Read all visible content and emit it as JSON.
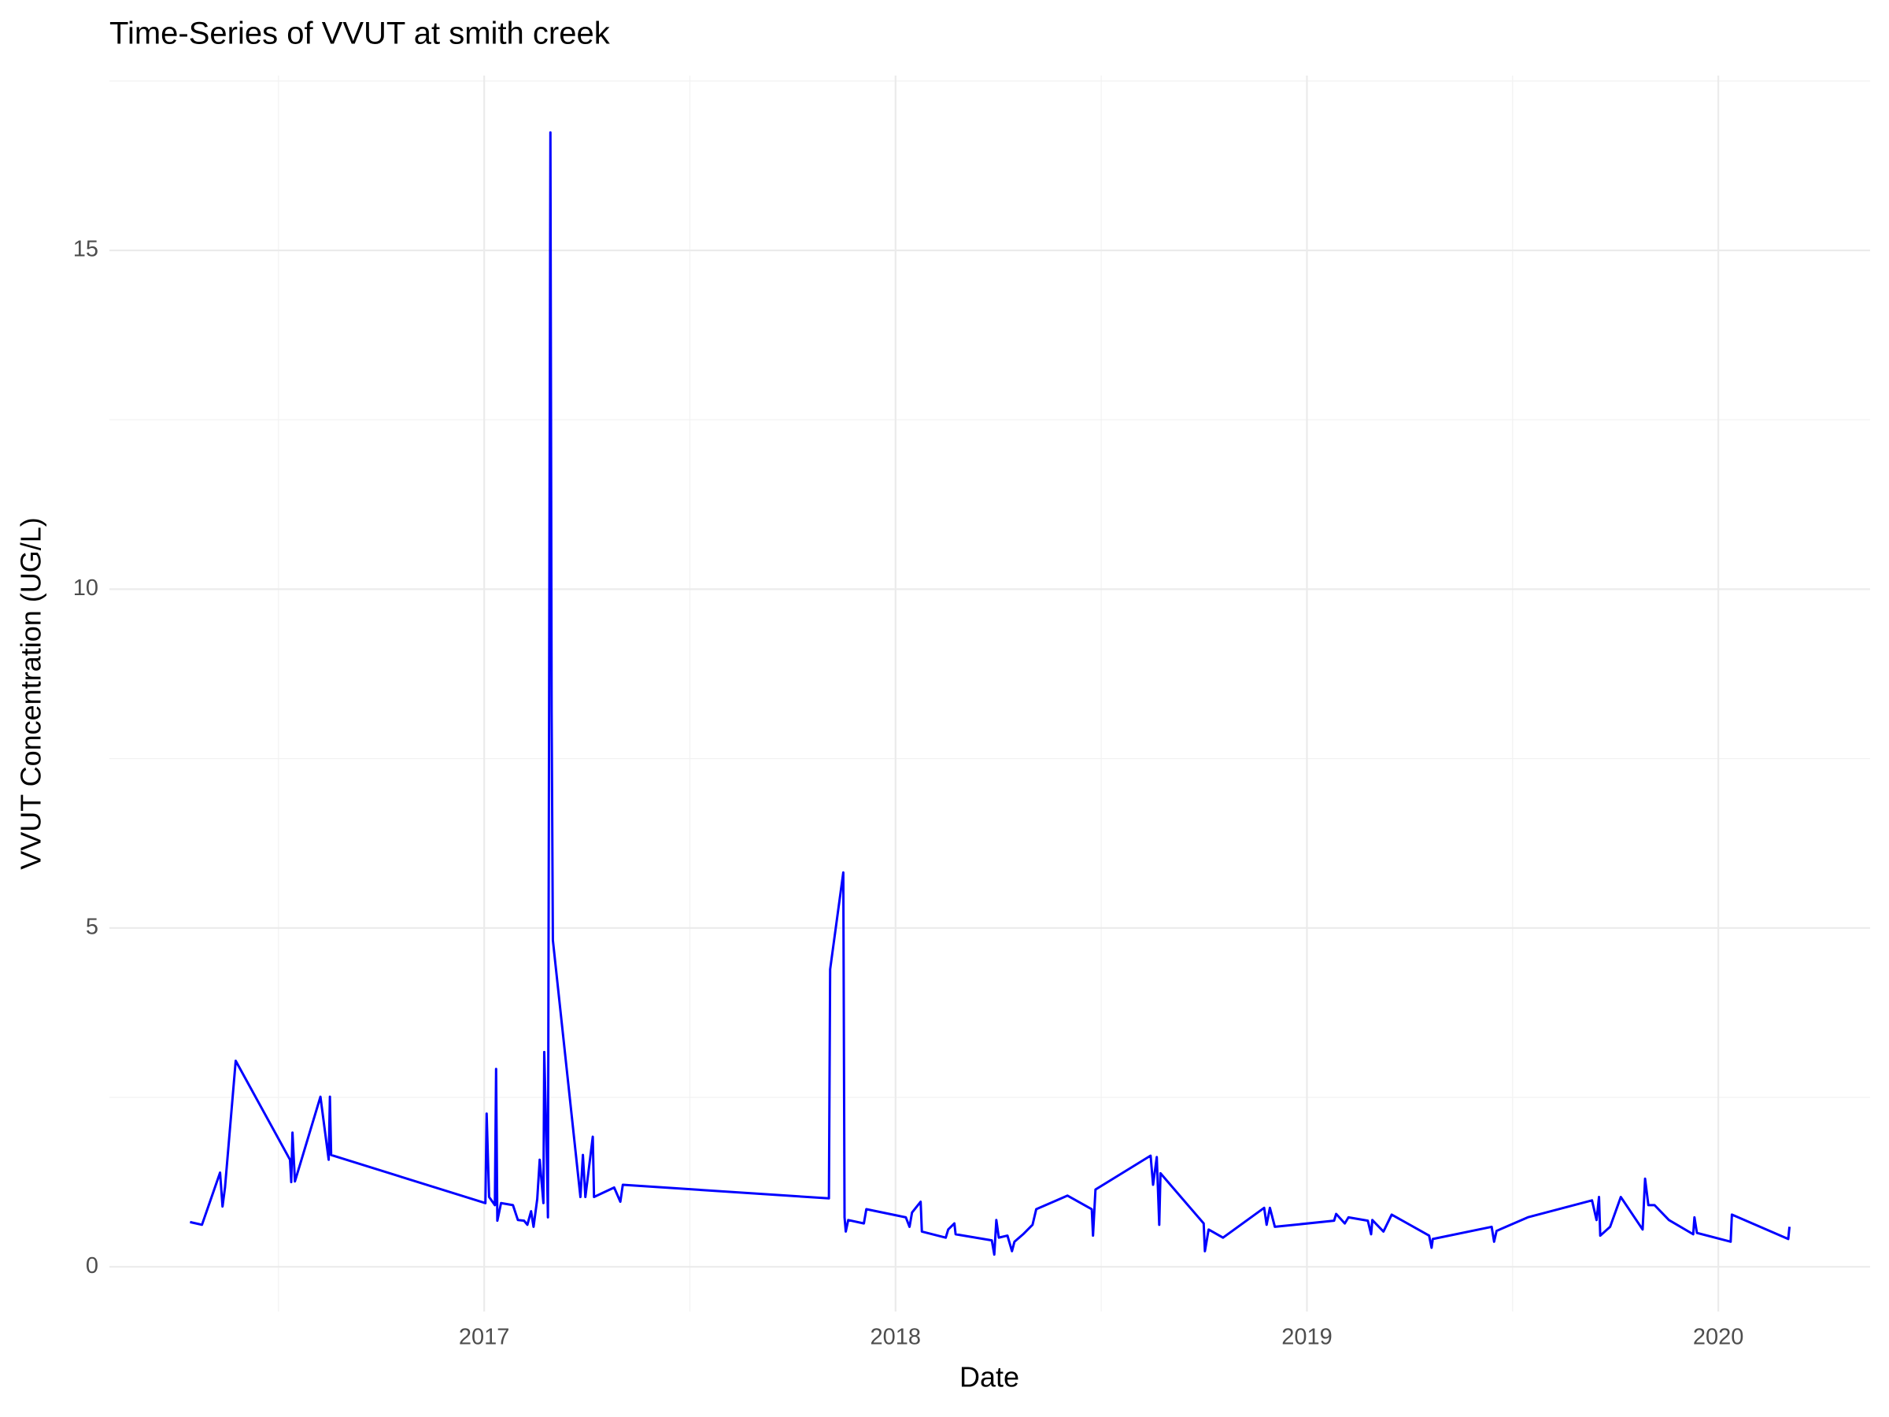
{
  "chart_data": {
    "type": "line",
    "title": "Time-Series of VVUT at smith creek",
    "xlabel": "Date",
    "ylabel": "VVUT Concentration (UG/L)",
    "color": "#0000ff",
    "grid": true,
    "xlim": [
      2016.089,
      2020.369
    ],
    "ylim": [
      -0.66,
      17.58
    ],
    "xticks": [
      2017,
      2018,
      2019,
      2020
    ],
    "yticks": [
      0,
      5,
      10,
      15
    ],
    "xminor": [
      2016.5,
      2017.5,
      2018.5,
      2019.5
    ],
    "yminor": [
      2.5,
      7.5,
      12.5,
      17.5
    ],
    "x": [
      2016.285,
      2016.314,
      2016.358,
      2016.364,
      2016.37,
      2016.396,
      2016.528,
      2016.531,
      2016.534,
      2016.54,
      2016.602,
      2016.622,
      2016.625,
      2016.628,
      2017.003,
      2017.006,
      2017.012,
      2017.026,
      2017.029,
      2017.032,
      2017.041,
      2017.07,
      2017.082,
      2017.097,
      2017.105,
      2017.114,
      2017.12,
      2017.129,
      2017.135,
      2017.144,
      2017.146,
      2017.152,
      2017.155,
      2017.161,
      2017.164,
      2017.167,
      2017.234,
      2017.24,
      2017.246,
      2017.264,
      2017.267,
      2017.316,
      2017.331,
      2017.337,
      2017.838,
      2017.841,
      2017.873,
      2017.876,
      2017.879,
      2017.885,
      2017.923,
      2017.929,
      2018.025,
      2018.034,
      2018.04,
      2018.061,
      2018.064,
      2018.122,
      2018.128,
      2018.143,
      2018.146,
      2018.234,
      2018.24,
      2018.245,
      2018.251,
      2018.272,
      2018.283,
      2018.289,
      2018.31,
      2018.333,
      2018.342,
      2018.418,
      2018.477,
      2018.48,
      2018.486,
      2018.62,
      2018.626,
      2018.635,
      2018.641,
      2018.644,
      2018.749,
      2018.752,
      2018.761,
      2018.796,
      2018.896,
      2018.902,
      2018.91,
      2018.922,
      2019.066,
      2019.071,
      2019.092,
      2019.101,
      2019.148,
      2019.156,
      2019.159,
      2019.186,
      2019.206,
      2019.297,
      2019.303,
      2019.306,
      2019.449,
      2019.455,
      2019.461,
      2019.537,
      2019.693,
      2019.704,
      2019.71,
      2019.713,
      2019.737,
      2019.763,
      2019.816,
      2019.822,
      2019.83,
      2019.845,
      2019.88,
      2019.939,
      2019.942,
      2019.948,
      2020.03,
      2020.033,
      2020.17,
      2020.173
    ],
    "values": [
      0.66,
      0.62,
      1.39,
      0.89,
      1.17,
      3.04,
      1.58,
      1.25,
      1.98,
      1.26,
      2.51,
      1.58,
      2.51,
      1.65,
      0.94,
      2.26,
      1.03,
      0.91,
      2.92,
      0.68,
      0.94,
      0.91,
      0.69,
      0.68,
      0.62,
      0.82,
      0.59,
      1.0,
      1.58,
      0.94,
      3.17,
      1.71,
      0.73,
      16.74,
      8.2,
      4.82,
      1.03,
      1.65,
      1.03,
      1.92,
      1.03,
      1.17,
      0.96,
      1.21,
      1.01,
      4.39,
      5.82,
      0.73,
      0.52,
      0.69,
      0.64,
      0.85,
      0.73,
      0.59,
      0.8,
      0.96,
      0.52,
      0.43,
      0.55,
      0.64,
      0.48,
      0.39,
      0.18,
      0.69,
      0.43,
      0.46,
      0.23,
      0.37,
      0.48,
      0.62,
      0.85,
      1.05,
      0.85,
      0.46,
      1.14,
      1.64,
      1.21,
      1.62,
      0.62,
      1.38,
      0.64,
      0.23,
      0.55,
      0.43,
      0.87,
      0.62,
      0.87,
      0.59,
      0.68,
      0.78,
      0.64,
      0.73,
      0.68,
      0.48,
      0.69,
      0.52,
      0.77,
      0.46,
      0.28,
      0.41,
      0.59,
      0.37,
      0.53,
      0.73,
      0.98,
      0.69,
      1.03,
      0.46,
      0.59,
      1.03,
      0.55,
      1.3,
      0.91,
      0.91,
      0.69,
      0.48,
      0.73,
      0.5,
      0.37,
      0.77,
      0.41,
      0.59
    ]
  }
}
